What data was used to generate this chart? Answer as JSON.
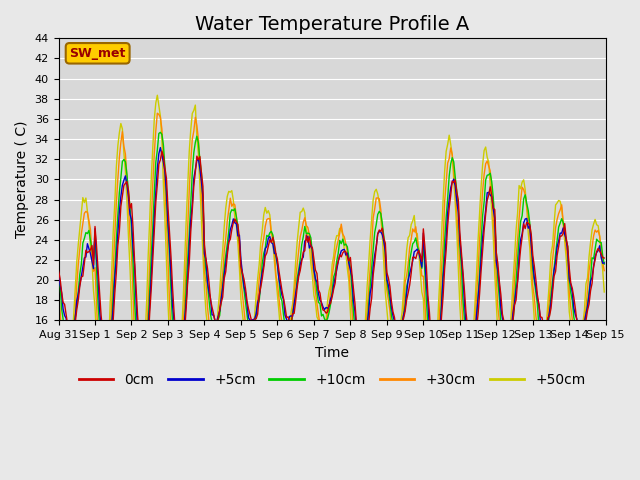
{
  "title": "Water Temperature Profile A",
  "xlabel": "Time",
  "ylabel": "Temperature ( C)",
  "ylim": [
    16,
    44
  ],
  "yticks": [
    16,
    18,
    20,
    22,
    24,
    26,
    28,
    30,
    32,
    34,
    36,
    38,
    40,
    42,
    44
  ],
  "x_tick_labels": [
    "Aug 31",
    "Sep 1",
    "Sep 2",
    "Sep 3",
    "Sep 4",
    "Sep 5",
    "Sep 6",
    "Sep 7",
    "Sep 8",
    "Sep 9",
    "Sep 10",
    "Sep 11",
    "Sep 12",
    "Sep 13",
    "Sep 14",
    "Sep 15"
  ],
  "x_tick_positions": [
    0,
    1,
    2,
    3,
    4,
    5,
    6,
    7,
    8,
    9,
    10,
    11,
    12,
    13,
    14,
    15
  ],
  "series_labels": [
    "0cm",
    "+5cm",
    "+10cm",
    "+30cm",
    "+50cm"
  ],
  "series_colors": [
    "#cc0000",
    "#0000cc",
    "#00cc00",
    "#ff8800",
    "#cccc00"
  ],
  "background_color": "#e8e8e8",
  "plot_bg_color": "#d8d8d8",
  "annotation_text": "SW_met",
  "annotation_box_color": "#ffcc00",
  "annotation_text_color": "#990000",
  "grid_color": "#ffffff",
  "title_fontsize": 14,
  "label_fontsize": 10,
  "tick_fontsize": 8,
  "legend_fontsize": 10,
  "n_days": 15,
  "pts_per_day": 24,
  "day_amplitudes_0cm": [
    4,
    9,
    11,
    10,
    5,
    4,
    4,
    3,
    6,
    4,
    9,
    8,
    6,
    5,
    4
  ],
  "day_amplitudes_5cm": [
    4,
    9,
    11,
    10,
    5,
    4,
    4,
    3,
    6,
    4,
    9,
    8,
    6,
    5,
    4
  ],
  "day_amplitudes_10cm": [
    6,
    11,
    13,
    12,
    6,
    5,
    5,
    4,
    8,
    5,
    11,
    10,
    8,
    6,
    5
  ],
  "day_amplitudes_30cm": [
    8,
    13,
    15,
    14,
    7,
    6,
    6,
    5,
    9,
    6,
    12,
    11,
    9,
    7,
    6
  ],
  "day_amplitudes_50cm": [
    9,
    14,
    16,
    15,
    8,
    7,
    7,
    5,
    10,
    7,
    13,
    12,
    10,
    8,
    7
  ],
  "day_bases": [
    19,
    21,
    22,
    22,
    21,
    20,
    20,
    20,
    19,
    19,
    21,
    21,
    20,
    20,
    19
  ],
  "phase_shifts_hours": [
    0,
    0.5,
    1.0,
    2.0,
    3.0
  ]
}
